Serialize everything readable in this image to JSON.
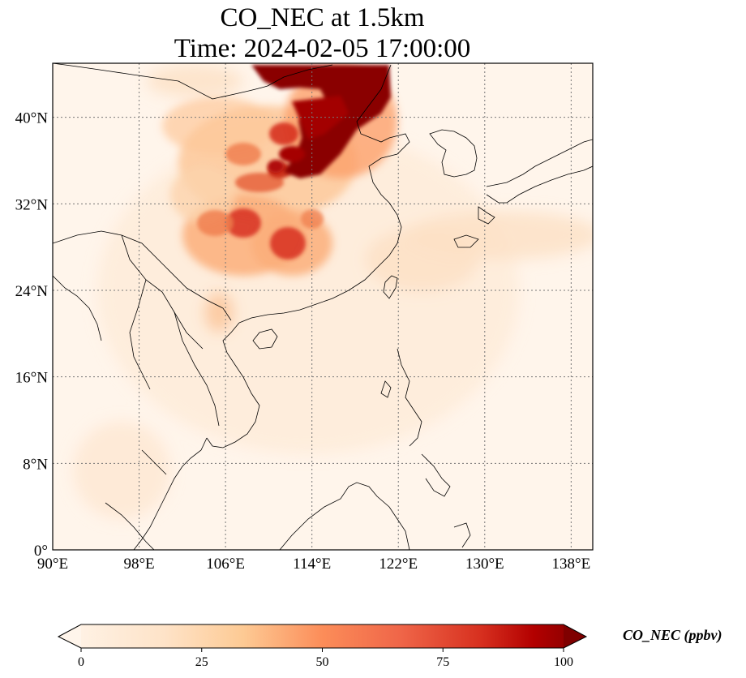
{
  "title": {
    "line1": "CO_NEC at 1.5km",
    "line2": "Time: 2024-02-05 17:00:00"
  },
  "map": {
    "variable": "CO_NEC",
    "level": "1.5km",
    "time": "2024-02-05 17:00:00",
    "lon_range": [
      90,
      140
    ],
    "lat_range": [
      0,
      45
    ],
    "gridlines": true,
    "gridline_style": "dotted",
    "lon_ticks": [
      {
        "value": 90,
        "label": "90°E"
      },
      {
        "value": 98,
        "label": "98°E"
      },
      {
        "value": 106,
        "label": "106°E"
      },
      {
        "value": 114,
        "label": "114°E"
      },
      {
        "value": 122,
        "label": "122°E"
      },
      {
        "value": 130,
        "label": "130°E"
      },
      {
        "value": 138,
        "label": "138°E"
      }
    ],
    "lat_ticks": [
      {
        "value": 0,
        "label": "0°"
      },
      {
        "value": 8,
        "label": "8°N"
      },
      {
        "value": 16,
        "label": "16°N"
      },
      {
        "value": 24,
        "label": "24°N"
      },
      {
        "value": 32,
        "label": "32°N"
      },
      {
        "value": 40,
        "label": "40°N"
      }
    ],
    "coastline_color": "#000000",
    "background_color": "#fff5eb"
  },
  "colorbar": {
    "label": "CO_NEC (ppbv)",
    "colormap": "OrRd",
    "min": 0,
    "max": 100,
    "extend": "both",
    "ticks": [
      {
        "value": 0,
        "label": "0"
      },
      {
        "value": 25,
        "label": "25"
      },
      {
        "value": 50,
        "label": "50"
      },
      {
        "value": 75,
        "label": "75"
      },
      {
        "value": 100,
        "label": "100"
      }
    ],
    "colors": [
      "#fff5eb",
      "#fdd8b3",
      "#fdac6d",
      "#e5592a",
      "#b00c03",
      "#7f0000"
    ]
  }
}
